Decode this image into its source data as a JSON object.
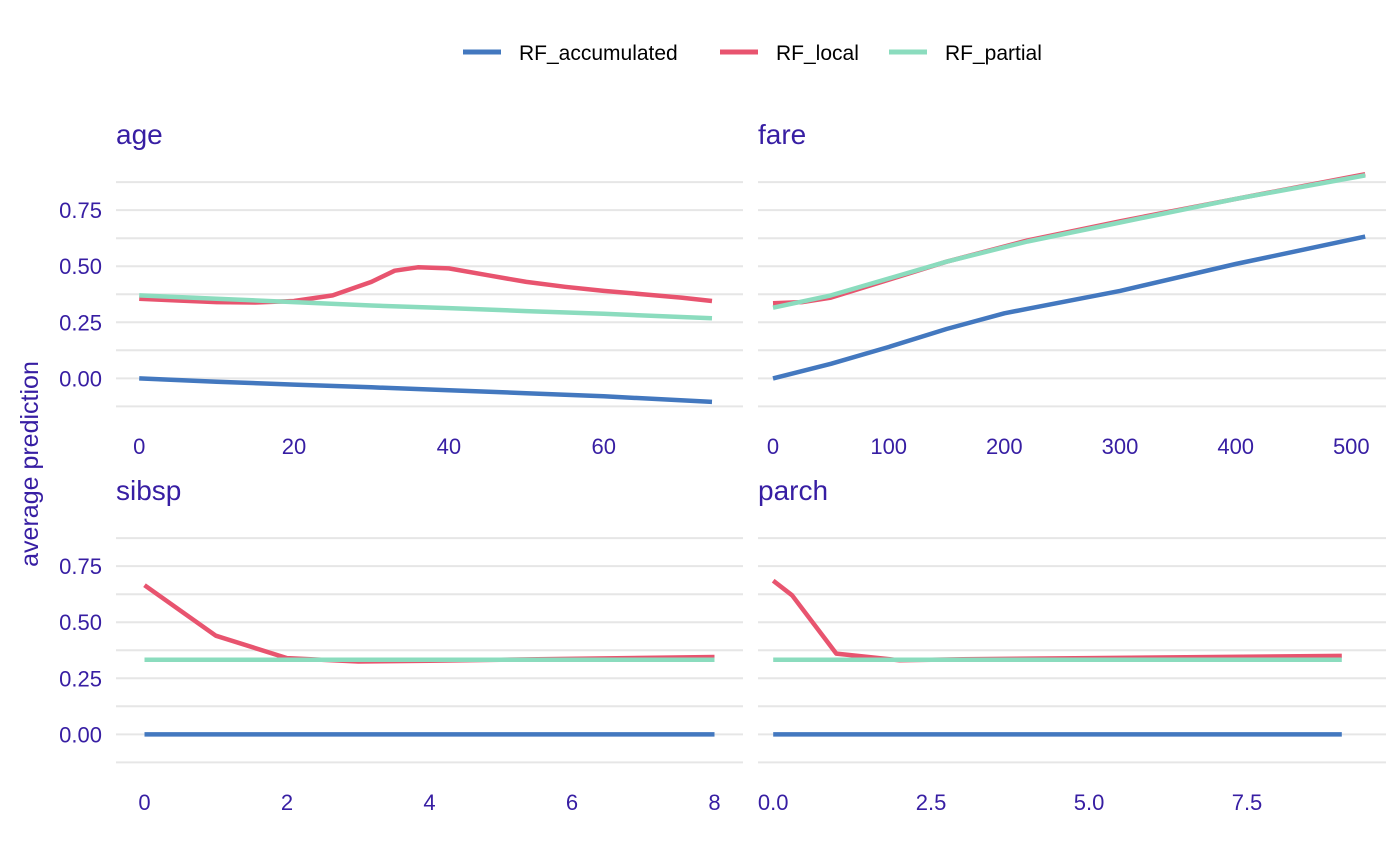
{
  "colors": {
    "text": "#371ea3",
    "grid": "#e6e6e6",
    "RF_accumulated": "#4378bf",
    "RF_local": "#e8546f",
    "RF_partial": "#8bdcbe"
  },
  "legend": {
    "placement": "top",
    "entries": [
      "RF_accumulated",
      "RF_local",
      "RF_partial"
    ]
  },
  "ylabel": "average prediction",
  "chart_data": [
    {
      "type": "line",
      "title": "age",
      "xlim": [
        -3,
        78
      ],
      "ylim": [
        -0.15,
        0.92
      ],
      "xticks": [
        0,
        20,
        40,
        60
      ],
      "xtick_labels": [
        "0",
        "20",
        "40",
        "60"
      ],
      "yticks": [
        0,
        0.25,
        0.5,
        0.75
      ],
      "ytick_labels": [
        "0.00",
        "0.25",
        "0.50",
        "0.75"
      ],
      "show_yticks": true,
      "series": [
        {
          "name": "RF_accumulated",
          "points": [
            [
              0,
              0.0
            ],
            [
              10,
              -0.015
            ],
            [
              20,
              -0.028
            ],
            [
              30,
              -0.04
            ],
            [
              40,
              -0.053
            ],
            [
              50,
              -0.066
            ],
            [
              60,
              -0.08
            ],
            [
              74,
              -0.105
            ]
          ]
        },
        {
          "name": "RF_local",
          "points": [
            [
              0,
              0.355
            ],
            [
              5,
              0.347
            ],
            [
              10,
              0.34
            ],
            [
              15,
              0.338
            ],
            [
              20,
              0.345
            ],
            [
              25,
              0.37
            ],
            [
              30,
              0.43
            ],
            [
              33,
              0.48
            ],
            [
              36,
              0.495
            ],
            [
              40,
              0.49
            ],
            [
              45,
              0.46
            ],
            [
              50,
              0.43
            ],
            [
              55,
              0.408
            ],
            [
              60,
              0.39
            ],
            [
              65,
              0.375
            ],
            [
              70,
              0.36
            ],
            [
              74,
              0.345
            ]
          ]
        },
        {
          "name": "RF_partial",
          "points": [
            [
              0,
              0.37
            ],
            [
              10,
              0.355
            ],
            [
              20,
              0.34
            ],
            [
              30,
              0.325
            ],
            [
              40,
              0.313
            ],
            [
              50,
              0.3
            ],
            [
              60,
              0.288
            ],
            [
              74,
              0.268
            ]
          ]
        }
      ]
    },
    {
      "type": "line",
      "title": "fare",
      "xlim": [
        -13,
        530
      ],
      "ylim": [
        -0.15,
        0.92
      ],
      "xticks": [
        0,
        100,
        200,
        300,
        400,
        500
      ],
      "xtick_labels": [
        "0",
        "100",
        "200",
        "300",
        "400",
        "500"
      ],
      "yticks": [
        0,
        0.25,
        0.5,
        0.75
      ],
      "ytick_labels": [
        "0.00",
        "0.25",
        "0.50",
        "0.75"
      ],
      "show_yticks": false,
      "series": [
        {
          "name": "RF_accumulated",
          "points": [
            [
              0,
              0.0
            ],
            [
              50,
              0.065
            ],
            [
              100,
              0.14
            ],
            [
              150,
              0.22
            ],
            [
              200,
              0.29
            ],
            [
              220,
              0.31
            ],
            [
              300,
              0.39
            ],
            [
              400,
              0.51
            ],
            [
              512,
              0.632
            ]
          ]
        },
        {
          "name": "RF_local",
          "points": [
            [
              0,
              0.335
            ],
            [
              25,
              0.34
            ],
            [
              50,
              0.36
            ],
            [
              100,
              0.44
            ],
            [
              150,
              0.52
            ],
            [
              220,
              0.615
            ],
            [
              300,
              0.7
            ],
            [
              400,
              0.8
            ],
            [
              512,
              0.91
            ]
          ]
        },
        {
          "name": "RF_partial",
          "points": [
            [
              0,
              0.315
            ],
            [
              50,
              0.37
            ],
            [
              100,
              0.445
            ],
            [
              150,
              0.52
            ],
            [
              220,
              0.61
            ],
            [
              300,
              0.695
            ],
            [
              400,
              0.8
            ],
            [
              512,
              0.905
            ]
          ]
        }
      ]
    },
    {
      "type": "line",
      "title": "sibsp",
      "xlim": [
        -0.4,
        8.4
      ],
      "ylim": [
        -0.15,
        0.92
      ],
      "xticks": [
        0,
        2,
        4,
        6,
        8
      ],
      "xtick_labels": [
        "0",
        "2",
        "4",
        "6",
        "8"
      ],
      "yticks": [
        0,
        0.25,
        0.5,
        0.75
      ],
      "ytick_labels": [
        "0.00",
        "0.25",
        "0.50",
        "0.75"
      ],
      "show_yticks": true,
      "series": [
        {
          "name": "RF_accumulated",
          "points": [
            [
              0,
              0.0
            ],
            [
              8,
              0.0
            ]
          ]
        },
        {
          "name": "RF_local",
          "points": [
            [
              0,
              0.665
            ],
            [
              1,
              0.44
            ],
            [
              2,
              0.34
            ],
            [
              3,
              0.325
            ],
            [
              4,
              0.328
            ],
            [
              5,
              0.333
            ],
            [
              8,
              0.345
            ]
          ]
        },
        {
          "name": "RF_partial",
          "points": [
            [
              0,
              0.333
            ],
            [
              8,
              0.333
            ]
          ]
        }
      ]
    },
    {
      "type": "line",
      "title": "parch",
      "xlim": [
        -0.24,
        9.7
      ],
      "ylim": [
        -0.15,
        0.92
      ],
      "xticks": [
        0,
        2.5,
        5,
        7.5
      ],
      "xtick_labels": [
        "0.0",
        "2.5",
        "5.0",
        "7.5"
      ],
      "yticks": [
        0,
        0.25,
        0.5,
        0.75
      ],
      "ytick_labels": [
        "0.00",
        "0.25",
        "0.50",
        "0.75"
      ],
      "show_yticks": false,
      "series": [
        {
          "name": "RF_accumulated",
          "points": [
            [
              0,
              0.0
            ],
            [
              9,
              0.0
            ]
          ]
        },
        {
          "name": "RF_local",
          "points": [
            [
              0,
              0.685
            ],
            [
              0.3,
              0.62
            ],
            [
              1,
              0.36
            ],
            [
              2,
              0.33
            ],
            [
              3,
              0.335
            ],
            [
              5,
              0.34
            ],
            [
              9,
              0.35
            ]
          ]
        },
        {
          "name": "RF_partial",
          "points": [
            [
              0,
              0.333
            ],
            [
              9,
              0.333
            ]
          ]
        }
      ]
    }
  ]
}
